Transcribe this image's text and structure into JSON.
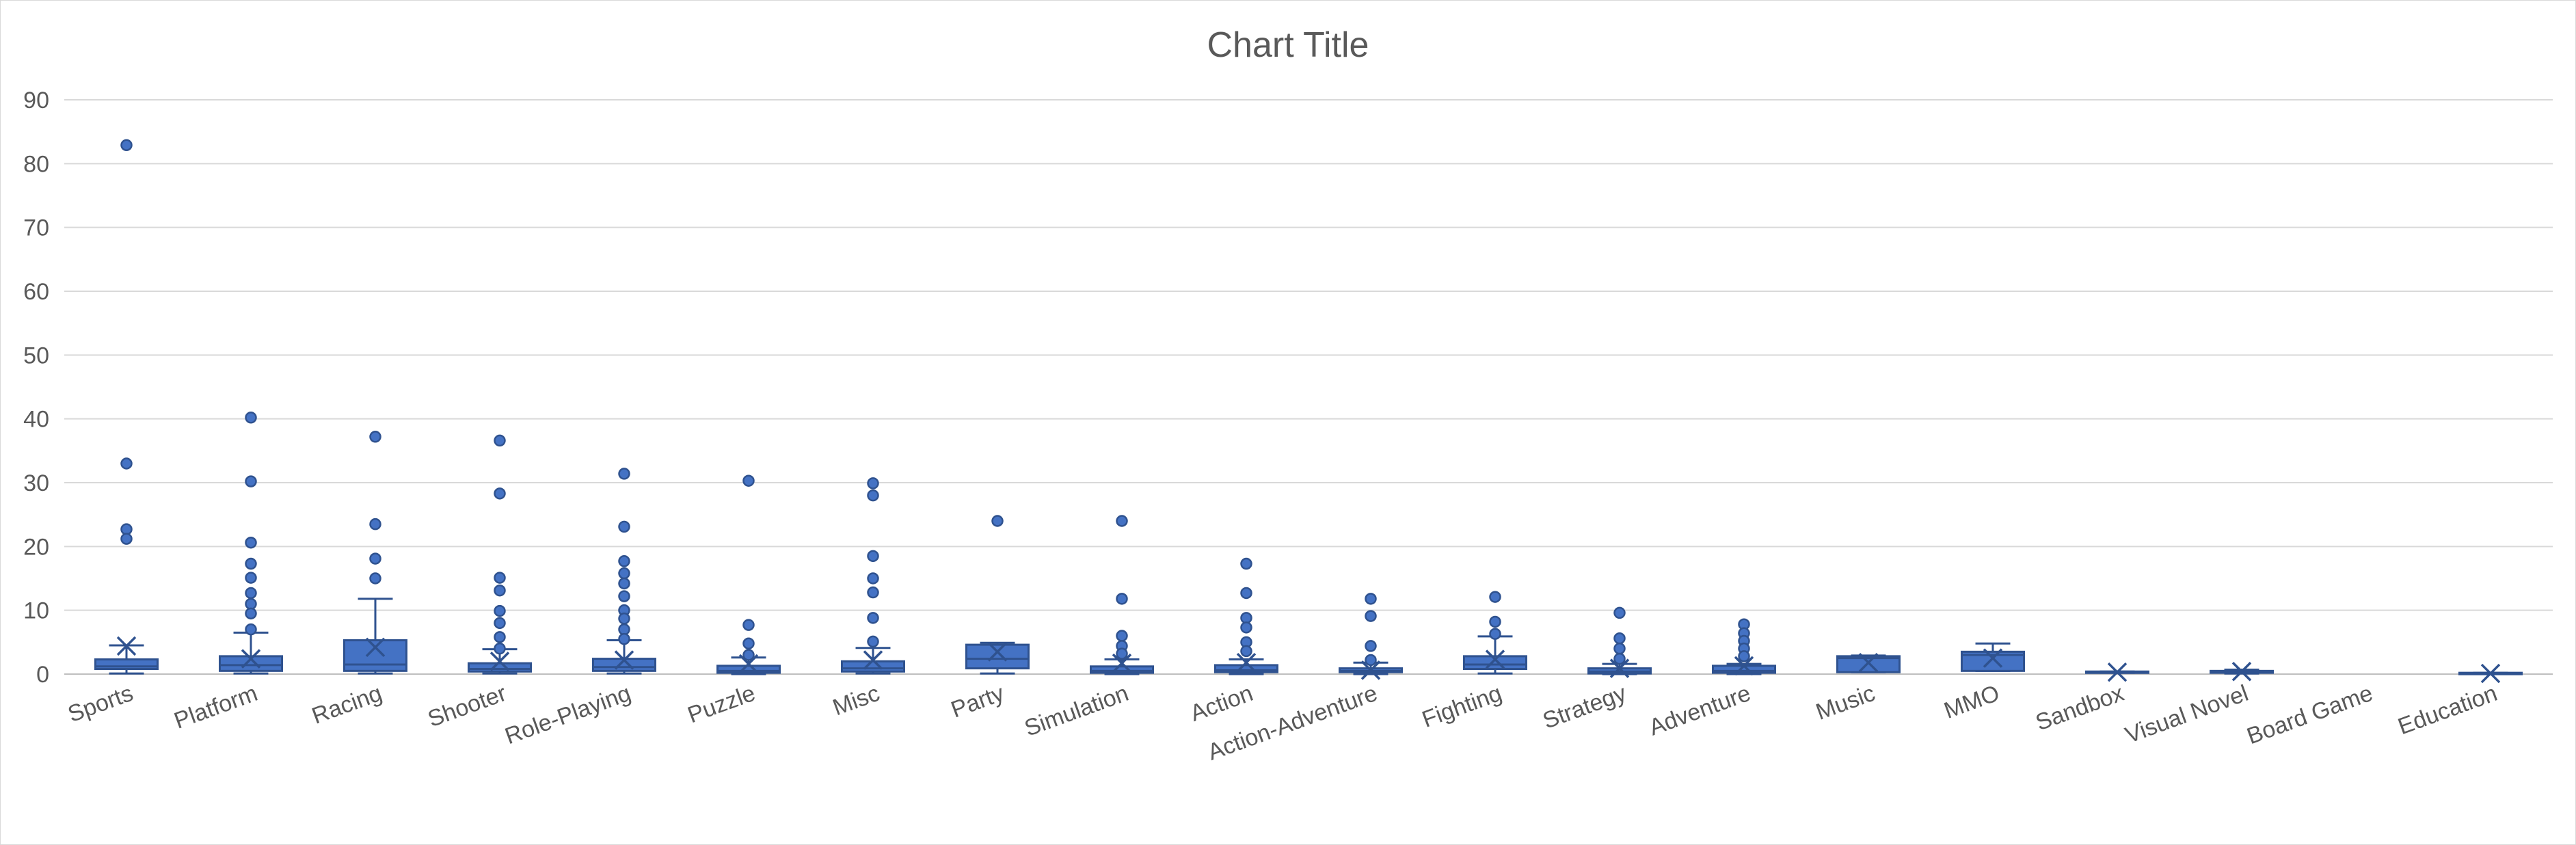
{
  "chart_data": {
    "type": "box",
    "title": "Chart Title",
    "xlabel": "",
    "ylabel": "",
    "ylim": [
      0,
      90
    ],
    "yticks": [
      0,
      10,
      20,
      30,
      40,
      50,
      60,
      70,
      80,
      90
    ],
    "grid": true,
    "legend": "none",
    "colors": {
      "fill": "#4472c4",
      "stroke": "#2f528f",
      "grid": "#d9d9d9",
      "text": "#595959"
    },
    "categories": [
      "Sports",
      "Platform",
      "Racing",
      "Shooter",
      "Role-Playing",
      "Puzzle",
      "Misc",
      "Party",
      "Simulation",
      "Action",
      "Action-Adventure",
      "Fighting",
      "Strategy",
      "Adventure",
      "Music",
      "MMO",
      "Sandbox",
      "Visual Novel",
      "Board Game",
      "Education"
    ],
    "boxes": [
      {
        "q1": 0.8,
        "median": 1.2,
        "q3": 2.3,
        "whisker_low": 0.1,
        "whisker_high": 4.5,
        "mean": 4.4,
        "outliers": [
          82.9,
          33.0,
          22.7,
          21.2
        ]
      },
      {
        "q1": 0.5,
        "median": 1.4,
        "q3": 2.8,
        "whisker_low": 0.1,
        "whisker_high": 6.5,
        "mean": 2.4,
        "outliers": [
          40.2,
          30.2,
          20.6,
          17.3,
          15.1,
          12.7,
          11.0,
          9.5,
          7.0
        ]
      },
      {
        "q1": 0.5,
        "median": 1.5,
        "q3": 5.3,
        "whisker_low": 0.1,
        "whisker_high": 11.8,
        "mean": 4.2,
        "outliers": [
          37.2,
          23.5,
          18.1,
          15.0
        ]
      },
      {
        "q1": 0.4,
        "median": 0.8,
        "q3": 1.7,
        "whisker_low": 0.1,
        "whisker_high": 3.9,
        "mean": 2.0,
        "outliers": [
          36.6,
          28.3,
          15.1,
          13.1,
          9.9,
          8.0,
          5.8,
          4.0
        ]
      },
      {
        "q1": 0.5,
        "median": 1.1,
        "q3": 2.4,
        "whisker_low": 0.1,
        "whisker_high": 5.3,
        "mean": 2.2,
        "outliers": [
          31.4,
          23.1,
          17.7,
          15.8,
          14.2,
          12.2,
          10.0,
          8.7,
          7.0,
          5.5
        ]
      },
      {
        "q1": 0.2,
        "median": 0.5,
        "q3": 1.3,
        "whisker_low": 0.0,
        "whisker_high": 2.6,
        "mean": 1.6,
        "outliers": [
          30.3,
          7.7,
          4.8,
          3.0
        ]
      },
      {
        "q1": 0.4,
        "median": 0.9,
        "q3": 2.0,
        "whisker_low": 0.1,
        "whisker_high": 4.1,
        "mean": 2.2,
        "outliers": [
          29.9,
          28.0,
          18.5,
          15.0,
          12.8,
          8.8,
          5.1
        ]
      },
      {
        "q1": 0.9,
        "median": 2.4,
        "q3": 4.6,
        "whisker_low": 0.1,
        "whisker_high": 4.9,
        "mean": 3.5,
        "outliers": [
          24.0
        ]
      },
      {
        "q1": 0.2,
        "median": 0.5,
        "q3": 1.2,
        "whisker_low": 0.0,
        "whisker_high": 2.3,
        "mean": 1.7,
        "outliers": [
          24.0,
          11.8,
          6.0,
          4.4,
          3.2
        ]
      },
      {
        "q1": 0.3,
        "median": 0.6,
        "q3": 1.4,
        "whisker_low": 0.0,
        "whisker_high": 2.3,
        "mean": 1.8,
        "outliers": [
          17.3,
          12.7,
          8.8,
          7.3,
          5.0,
          3.6
        ]
      },
      {
        "q1": 0.3,
        "median": 0.5,
        "q3": 0.9,
        "whisker_low": 0.0,
        "whisker_high": 1.8,
        "mean": 0.6,
        "outliers": [
          11.8,
          9.1,
          4.4,
          2.2
        ]
      },
      {
        "q1": 0.8,
        "median": 1.5,
        "q3": 2.8,
        "whisker_low": 0.1,
        "whisker_high": 5.9,
        "mean": 2.3,
        "outliers": [
          12.1,
          8.2,
          6.3
        ]
      },
      {
        "q1": 0.1,
        "median": 0.4,
        "q3": 0.9,
        "whisker_low": 0.0,
        "whisker_high": 1.6,
        "mean": 0.9,
        "outliers": [
          9.6,
          5.6,
          4.0,
          2.4
        ]
      },
      {
        "q1": 0.2,
        "median": 0.5,
        "q3": 1.3,
        "whisker_low": 0.0,
        "whisker_high": 1.6,
        "mean": 1.3,
        "outliers": [
          7.8,
          6.4,
          5.2,
          4.0,
          2.8
        ]
      },
      {
        "q1": 0.3,
        "median": 2.5,
        "q3": 2.8,
        "whisker_low": 0.3,
        "whisker_high": 2.9,
        "mean": 1.8,
        "outliers": []
      },
      {
        "q1": 0.5,
        "median": 3.0,
        "q3": 3.5,
        "whisker_low": 0.5,
        "whisker_high": 4.8,
        "mean": 2.5,
        "outliers": []
      },
      {
        "q1": 0.2,
        "median": 0.3,
        "q3": 0.4,
        "whisker_low": 0.2,
        "whisker_high": 0.4,
        "mean": 0.3,
        "outliers": []
      },
      {
        "q1": 0.2,
        "median": 0.3,
        "q3": 0.5,
        "whisker_low": 0.1,
        "whisker_high": 0.7,
        "mean": 0.4,
        "outliers": []
      },
      null,
      {
        "q1": 0.1,
        "median": 0.1,
        "q3": 0.2,
        "whisker_low": 0.1,
        "whisker_high": 0.2,
        "mean": 0.1,
        "outliers": []
      }
    ]
  }
}
